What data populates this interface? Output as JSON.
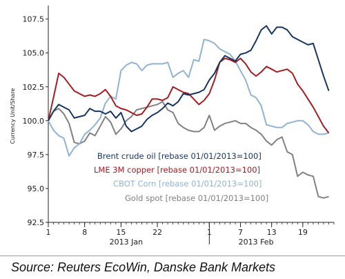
{
  "chart_data": {
    "type": "line",
    "ylabel": "Currency Unit/Share",
    "ylim": [
      92.5,
      108.5
    ],
    "y_ticks": [
      "107.5",
      "105.0",
      "102.5",
      "100.0",
      "97.5",
      "95.0",
      "92.5"
    ],
    "y_tick_values": [
      107.5,
      105.0,
      102.5,
      100.0,
      97.5,
      95.0,
      92.5
    ],
    "x_ticks": [
      "1",
      "8",
      "15",
      "22",
      "1",
      "7",
      "13",
      "19"
    ],
    "x_tick_days": [
      0,
      7,
      14,
      21,
      31,
      37,
      43,
      49
    ],
    "x_month_labels": [
      "2013 Jan",
      "2013 Feb"
    ],
    "x_month_centers": [
      15,
      40
    ],
    "xlim": [
      0,
      55
    ],
    "x": [
      0,
      1,
      2,
      3,
      4,
      5,
      6,
      7,
      8,
      9,
      10,
      11,
      12,
      13,
      14,
      15,
      16,
      17,
      18,
      19,
      20,
      21,
      22,
      23,
      24,
      25,
      26,
      27,
      28,
      29,
      30,
      31,
      32,
      33,
      34,
      35,
      36,
      37,
      38,
      39,
      40,
      41,
      42,
      43,
      44,
      45,
      46,
      47,
      48,
      49,
      50,
      51,
      52,
      53,
      54
    ],
    "series": [
      {
        "name": "Brent crude oil [rebase 01/01/2013=100]",
        "color": "#16345e",
        "values": [
          100.0,
          100.7,
          101.2,
          101.0,
          100.8,
          100.2,
          100.3,
          100.4,
          100.9,
          100.7,
          100.7,
          100.5,
          100.7,
          100.2,
          100.6,
          99.6,
          99.2,
          99.4,
          99.6,
          100.1,
          100.4,
          100.6,
          100.9,
          101.3,
          101.1,
          101.4,
          102.0,
          101.9,
          102.0,
          102.1,
          102.3,
          103.0,
          103.5,
          104.3,
          104.8,
          104.6,
          104.4,
          104.9,
          105.0,
          105.2,
          105.9,
          106.7,
          107.0,
          106.4,
          106.9,
          106.9,
          106.7,
          106.2,
          106.0,
          105.8,
          105.6,
          105.7,
          104.5,
          103.3,
          102.2
        ]
      },
      {
        "name": "LME 3M copper [rebase 01/01/2013=100]",
        "color": "#a31c22",
        "values": [
          100.0,
          101.7,
          103.5,
          103.2,
          102.7,
          102.2,
          102.0,
          101.8,
          101.9,
          101.8,
          102.0,
          102.3,
          101.8,
          101.1,
          100.9,
          100.8,
          100.6,
          100.4,
          100.5,
          101.0,
          101.6,
          101.6,
          101.5,
          101.7,
          102.5,
          102.3,
          102.1,
          102.0,
          101.6,
          101.2,
          101.5,
          102.0,
          103.0,
          104.3,
          104.6,
          104.5,
          104.3,
          104.6,
          104.2,
          103.6,
          103.3,
          103.6,
          104.0,
          103.8,
          103.6,
          103.7,
          103.8,
          103.5,
          102.7,
          102.2,
          101.6,
          101.0,
          100.3,
          99.6,
          99.1
        ]
      },
      {
        "name": "CBOT Corn [rebase 01/01/2013=100]",
        "color": "#8fb3d0",
        "values": [
          100.0,
          99.3,
          98.9,
          98.7,
          97.4,
          98.0,
          98.3,
          99.0,
          99.3,
          99.7,
          100.2,
          101.3,
          101.8,
          101.6,
          103.7,
          104.1,
          104.3,
          104.2,
          103.7,
          104.1,
          104.2,
          104.2,
          104.2,
          104.3,
          103.2,
          103.5,
          103.7,
          103.2,
          104.5,
          104.4,
          106.0,
          105.9,
          105.7,
          105.3,
          105.1,
          104.9,
          104.4,
          103.7,
          103.0,
          101.9,
          101.7,
          101.1,
          99.7,
          99.6,
          99.5,
          99.5,
          99.8,
          99.9,
          100.0,
          100.0,
          99.7,
          99.2,
          99.0,
          99.0,
          99.1
        ]
      },
      {
        "name": "Gold spot [rebase 01/01/2013=100]",
        "color": "#808080",
        "values": [
          100.0,
          100.7,
          100.9,
          100.5,
          99.8,
          98.4,
          98.3,
          98.5,
          99.1,
          98.9,
          99.6,
          100.3,
          99.9,
          99.0,
          99.4,
          100.0,
          100.3,
          100.8,
          100.9,
          101.0,
          101.1,
          101.2,
          101.4,
          100.8,
          100.6,
          99.8,
          99.5,
          99.3,
          99.2,
          99.2,
          99.5,
          100.4,
          99.3,
          99.6,
          99.8,
          99.9,
          100.0,
          99.8,
          99.8,
          99.5,
          99.3,
          99.0,
          98.5,
          98.2,
          98.6,
          98.8,
          97.7,
          97.5,
          95.9,
          96.2,
          96.0,
          95.9,
          94.4,
          94.3,
          94.4
        ]
      }
    ],
    "legend_placement": "bottom-center",
    "grid": false
  },
  "source": "Source: Reuters EcoWin, Danske Bank Markets"
}
